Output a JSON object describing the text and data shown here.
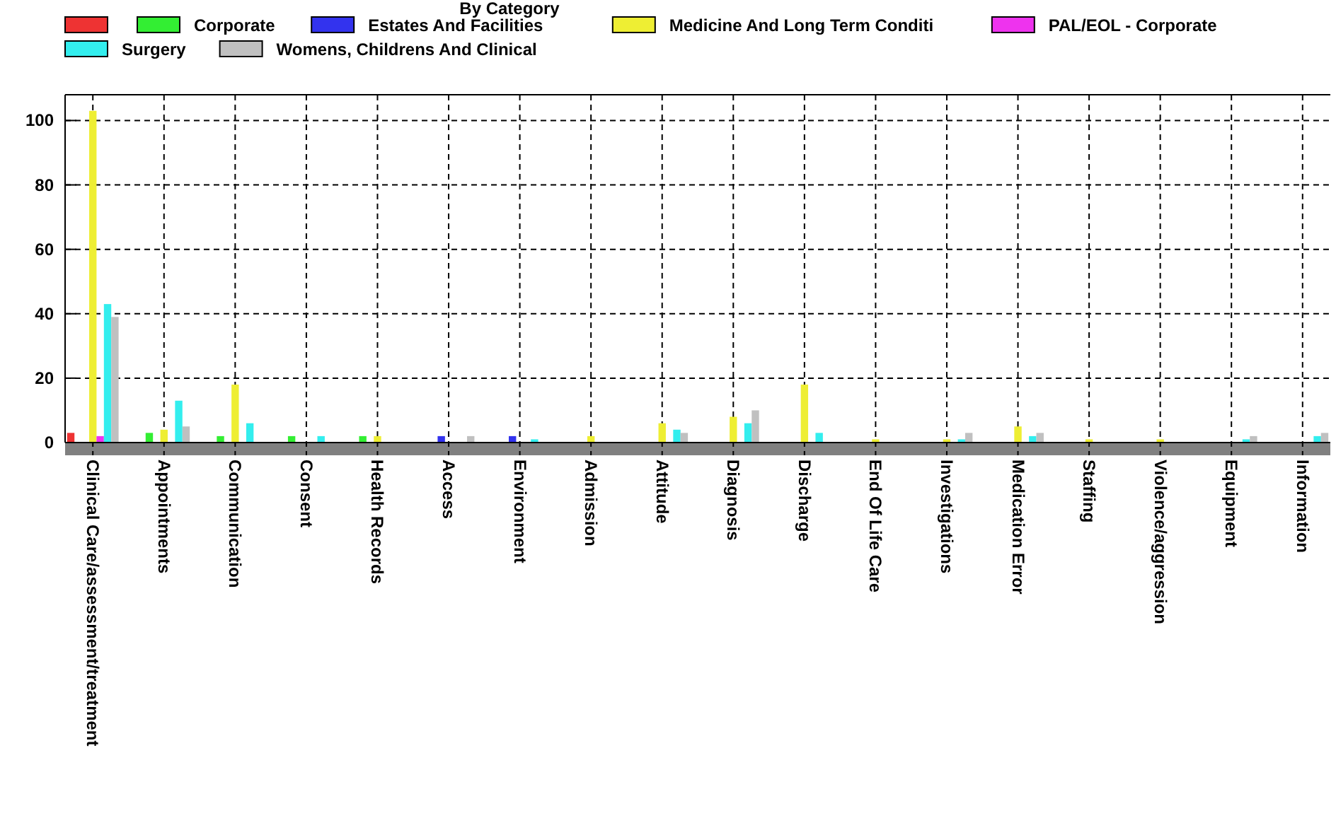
{
  "chart_data": {
    "type": "bar",
    "title": "By Category",
    "categories": [
      "Clinical Care/assessment/treatment",
      "Appointments",
      "Communication",
      "Consent",
      "Health Records",
      "Access",
      "Environment",
      "Admission",
      "Attitude",
      "Diagnosis",
      "Discharge",
      "End Of Life Care",
      "Investigations",
      "Medication Error",
      "Staffing",
      "Violence/aggression",
      "Equipment",
      "Information"
    ],
    "series": [
      {
        "color": "#ee3333",
        "values": [
          3,
          0,
          0,
          0,
          0,
          0,
          0,
          0,
          0,
          0,
          0,
          0,
          0,
          0,
          0,
          0,
          0,
          0
        ]
      },
      {
        "name": "Corporate",
        "color": "#33ee33",
        "values": [
          0,
          3,
          2,
          2,
          2,
          0,
          0,
          0,
          0,
          0,
          0,
          0,
          0,
          0,
          0,
          0,
          0,
          0
        ]
      },
      {
        "name": "Estates And Facilities",
        "color": "#3333ee",
        "values": [
          0,
          0,
          0,
          0,
          0,
          2,
          2,
          0,
          0,
          0,
          0,
          0,
          0,
          0,
          0,
          0,
          0,
          0
        ]
      },
      {
        "name": "Medicine And Long Term Conditi",
        "color": "#eeee33",
        "values": [
          103,
          4,
          18,
          0,
          2,
          0,
          0,
          2,
          6,
          8,
          18,
          1,
          1,
          5,
          1,
          1,
          0,
          0
        ]
      },
      {
        "name": "PAL/EOL - Corporate",
        "color": "#ee33ee",
        "values": [
          2,
          0,
          0,
          0,
          0,
          0,
          0,
          0,
          0,
          0,
          0,
          0,
          0,
          0,
          0,
          0,
          0,
          0
        ]
      },
      {
        "name": "Surgery",
        "color": "#33eeee",
        "values": [
          43,
          13,
          6,
          2,
          0,
          0,
          1,
          0,
          4,
          6,
          3,
          0,
          1,
          2,
          0,
          0,
          1,
          2
        ]
      },
      {
        "name": "Womens, Childrens And Clinical",
        "color": "#c0c0c0",
        "values": [
          39,
          5,
          0,
          0,
          0,
          2,
          0,
          0,
          3,
          10,
          0,
          0,
          3,
          3,
          0,
          0,
          2,
          3
        ]
      }
    ],
    "ylim": [
      0,
      108
    ],
    "yticks": [
      0,
      20,
      40,
      60,
      80,
      100
    ],
    "grid": true,
    "legend": "top"
  }
}
